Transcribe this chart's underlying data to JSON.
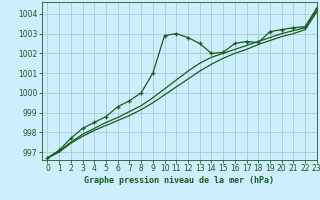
{
  "title": "Graphe pression niveau de la mer (hPa)",
  "bg_color": "#cceeff",
  "grid_color": "#aacccc",
  "line_color": "#1a5c1a",
  "xlim": [
    -0.5,
    23
  ],
  "ylim": [
    996.6,
    1004.6
  ],
  "yticks": [
    997,
    998,
    999,
    1000,
    1001,
    1002,
    1003,
    1004
  ],
  "xticks": [
    0,
    1,
    2,
    3,
    4,
    5,
    6,
    7,
    8,
    9,
    10,
    11,
    12,
    13,
    14,
    15,
    16,
    17,
    18,
    19,
    20,
    21,
    22,
    23
  ],
  "series_marker": {
    "x": [
      0,
      1,
      2,
      3,
      4,
      5,
      6,
      7,
      8,
      9,
      10,
      11,
      12,
      13,
      14,
      15,
      16,
      17,
      18,
      19,
      20,
      21,
      22,
      23
    ],
    "y": [
      996.7,
      997.1,
      997.7,
      998.2,
      998.5,
      998.8,
      999.3,
      999.6,
      1000.0,
      1001.0,
      1002.9,
      1003.0,
      1002.8,
      1002.5,
      1002.0,
      1002.05,
      1002.5,
      1002.6,
      1002.55,
      1003.1,
      1003.2,
      1003.3,
      1003.35,
      1004.3
    ]
  },
  "series_line1": {
    "x": [
      0,
      1,
      2,
      3,
      4,
      5,
      6,
      7,
      8,
      9,
      10,
      11,
      12,
      13,
      14,
      15,
      16,
      17,
      18,
      19,
      20,
      21,
      22,
      23
    ],
    "y": [
      996.7,
      997.0,
      997.45,
      997.8,
      998.1,
      998.35,
      998.6,
      998.85,
      999.15,
      999.5,
      999.9,
      1000.3,
      1000.7,
      1001.1,
      1001.45,
      1001.75,
      1002.0,
      1002.2,
      1002.45,
      1002.65,
      1002.85,
      1003.0,
      1003.2,
      1004.1
    ]
  },
  "series_line2": {
    "x": [
      0,
      1,
      2,
      3,
      4,
      5,
      6,
      7,
      8,
      9,
      10,
      11,
      12,
      13,
      14,
      15,
      16,
      17,
      18,
      19,
      20,
      21,
      22,
      23
    ],
    "y": [
      996.7,
      997.05,
      997.5,
      997.9,
      998.2,
      998.5,
      998.75,
      999.05,
      999.35,
      999.75,
      1000.2,
      1000.65,
      1001.1,
      1001.5,
      1001.8,
      1002.0,
      1002.2,
      1002.4,
      1002.6,
      1002.8,
      1003.0,
      1003.15,
      1003.3,
      1004.2
    ]
  },
  "title_fontsize": 6,
  "tick_fontsize": 5.5
}
